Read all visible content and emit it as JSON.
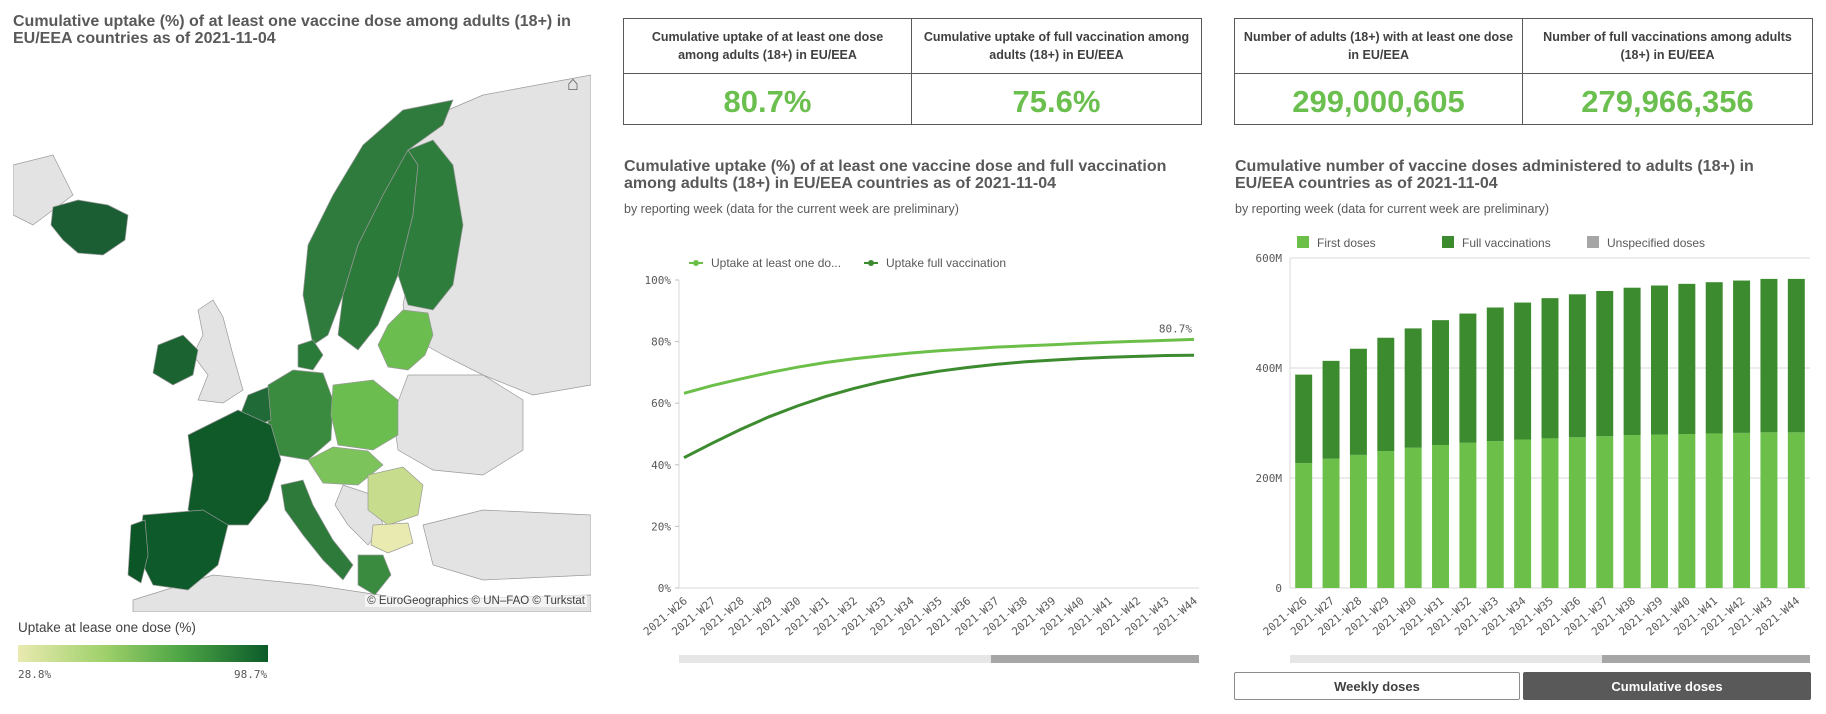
{
  "map": {
    "title": "Cumulative uptake (%) of at least one vaccine dose among adults (18+) in EU/EEA countries as of 2021-11-04",
    "attribution": "© EuroGeographics © UN–FAO © Turkstat",
    "home_icon": "home-icon",
    "legend_title": "Uptake at lease one dose (%)",
    "legend_min": "28.8%",
    "legend_max": "98.7%",
    "colors": {
      "sea": "#ffffff",
      "non_eu": "#e3e3e3",
      "border": "#9a9a9a",
      "low": "#e9eab0",
      "mid": "#6cbd50",
      "high": "#0b5b2a"
    }
  },
  "kpis": [
    {
      "label": "Cumulative uptake of at least one dose among adults (18+) in EU/EEA",
      "value": "80.7%"
    },
    {
      "label": "Cumulative uptake of full vaccination among adults (18+) in EU/EEA",
      "value": "75.6%"
    },
    {
      "label": "Number of adults (18+) with at least one dose in EU/EEA",
      "value": "299,000,605"
    },
    {
      "label": "Number of full vaccinations among adults (18+) in EU/EEA",
      "value": "279,966,356"
    }
  ],
  "line_chart": {
    "title": "Cumulative uptake (%) of at least one vaccine dose and full vaccination among adults (18+) in EU/EEA countries as of 2021-11-04",
    "subtitle": "by reporting week (data for the current week are preliminary)"
  },
  "bar_chart": {
    "title": "Cumulative number of vaccine doses administered to adults (18+) in EU/EEA countries as of 2021-11-04",
    "subtitle": "by reporting week (data for current week are preliminary)"
  },
  "buttons": {
    "weekly": "Weekly doses",
    "cumulative": "Cumulative doses"
  },
  "chart_data": [
    {
      "type": "line",
      "title": "Cumulative uptake (%) of at least one vaccine dose and full vaccination among adults (18+) in EU/EEA countries as of 2021-11-04",
      "categories": [
        "2021-W26",
        "2021-W27",
        "2021-W28",
        "2021-W29",
        "2021-W30",
        "2021-W31",
        "2021-W32",
        "2021-W33",
        "2021-W34",
        "2021-W35",
        "2021-W36",
        "2021-W37",
        "2021-W38",
        "2021-W39",
        "2021-W40",
        "2021-W41",
        "2021-W42",
        "2021-W43",
        "2021-W44"
      ],
      "series": [
        {
          "name": "Uptake at least one do...",
          "color": "#6cc04a",
          "values": [
            63.2,
            65.7,
            67.9,
            69.9,
            71.7,
            73.2,
            74.4,
            75.4,
            76.3,
            77.0,
            77.6,
            78.2,
            78.6,
            79.0,
            79.4,
            79.8,
            80.1,
            80.4,
            80.7
          ]
        },
        {
          "name": "Uptake full vaccination",
          "color": "#3d8b2f",
          "values": [
            42.3,
            47.0,
            51.5,
            55.6,
            59.1,
            62.2,
            64.8,
            67.0,
            68.9,
            70.4,
            71.6,
            72.6,
            73.4,
            74.0,
            74.5,
            74.9,
            75.2,
            75.5,
            75.6
          ]
        }
      ],
      "y_ticks": [
        "0%",
        "20%",
        "40%",
        "60%",
        "80%",
        "100%"
      ],
      "ylim": [
        0,
        100
      ],
      "end_label": "80.7%",
      "legend": "top-left"
    },
    {
      "type": "bar",
      "stacked": true,
      "title": "Cumulative number of vaccine doses administered to adults (18+) in EU/EEA countries as of 2021-11-04",
      "categories": [
        "2021-W26",
        "2021-W27",
        "2021-W28",
        "2021-W29",
        "2021-W30",
        "2021-W31",
        "2021-W32",
        "2021-W33",
        "2021-W34",
        "2021-W35",
        "2021-W36",
        "2021-W37",
        "2021-W38",
        "2021-W39",
        "2021-W40",
        "2021-W41",
        "2021-W42",
        "2021-W43",
        "2021-W44"
      ],
      "series": [
        {
          "name": "First doses",
          "color": "#6cc04a",
          "values": [
            227,
            235,
            242,
            249,
            255,
            260,
            264,
            267,
            270,
            272,
            274,
            276,
            278,
            279,
            280,
            281,
            282,
            283,
            283
          ]
        },
        {
          "name": "Full vaccinations",
          "color": "#3d8b2f",
          "values": [
            161,
            178,
            193,
            206,
            217,
            227,
            235,
            243,
            249,
            255,
            260,
            264,
            268,
            271,
            273,
            275,
            277,
            279,
            279
          ]
        },
        {
          "name": "Unspecified doses",
          "color": "#a6a6a6",
          "values": [
            0,
            0,
            0,
            0,
            0,
            0,
            0,
            0,
            0,
            0,
            0,
            0,
            0,
            0,
            0,
            0,
            0,
            0,
            0
          ]
        }
      ],
      "y_ticks": [
        "0",
        "200M",
        "400M",
        "600M"
      ],
      "ylim": [
        0,
        600
      ],
      "unit": "millions",
      "legend": "top"
    }
  ]
}
